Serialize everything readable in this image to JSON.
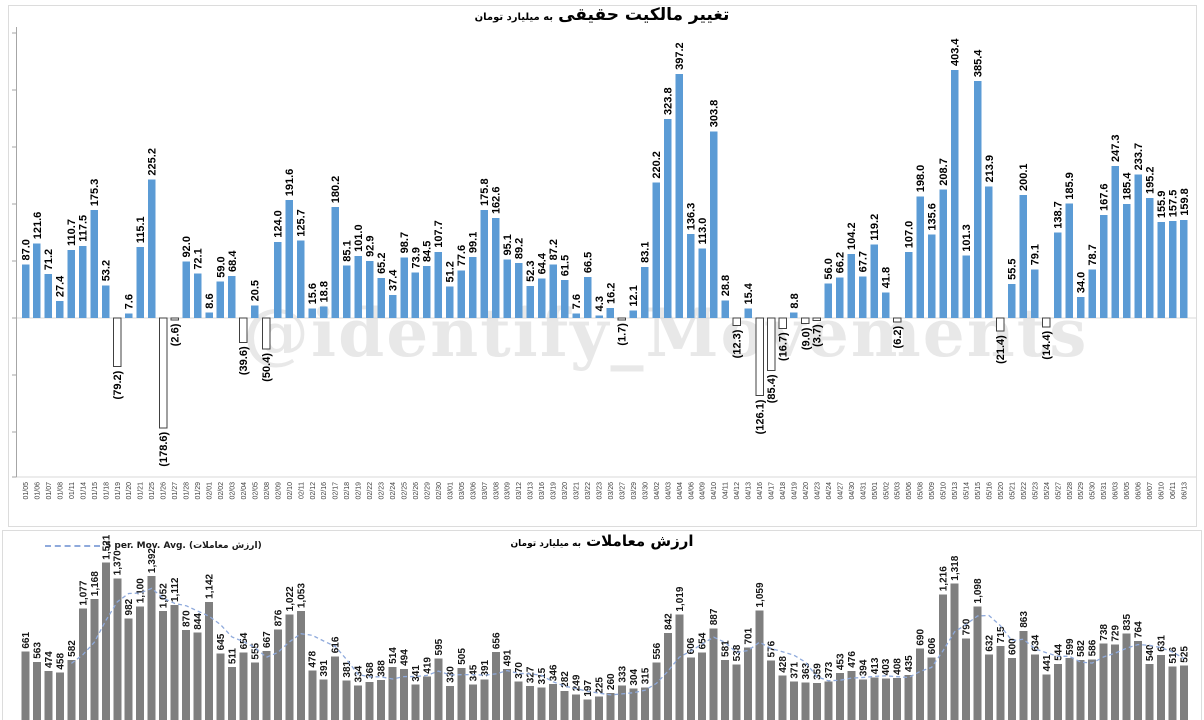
{
  "watermark": "@identify_Movements",
  "chart_data": [
    {
      "type": "bar",
      "title": "تغییر مالکیت حقیقی",
      "subtitle": "به میلیارد تومان",
      "bar_color": "#5B9BD5",
      "negative_bar_fill": "#FFFFFF",
      "negative_bar_border": "#404040",
      "label_note": "negative values shown in parentheses below axis",
      "grid": false,
      "ylim": [
        -260,
        470
      ],
      "categories": [
        "01/05",
        "01/06",
        "01/07",
        "01/08",
        "01/11",
        "01/14",
        "01/15",
        "01/18",
        "01/19",
        "01/20",
        "01/21",
        "01/25",
        "01/26",
        "01/27",
        "01/28",
        "01/29",
        "02/01",
        "02/02",
        "02/03",
        "02/04",
        "02/05",
        "02/08",
        "02/09",
        "02/10",
        "02/11",
        "02/12",
        "02/16",
        "02/17",
        "02/18",
        "02/19",
        "02/22",
        "02/23",
        "02/24",
        "02/25",
        "02/26",
        "02/29",
        "02/30",
        "03/01",
        "03/05",
        "03/06",
        "03/07",
        "03/08",
        "03/09",
        "03/12",
        "03/13",
        "03/16",
        "03/19",
        "03/20",
        "03/21",
        "03/22",
        "03/23",
        "03/26",
        "03/27",
        "03/29",
        "03/30",
        "04/02",
        "04/03",
        "04/04",
        "04/06",
        "04/09",
        "04/10",
        "04/11",
        "04/12",
        "04/13",
        "04/16",
        "04/17",
        "04/18",
        "04/19",
        "04/20",
        "04/23",
        "04/24",
        "04/27",
        "04/30",
        "04/31",
        "05/01",
        "05/02",
        "05/03",
        "05/06",
        "05/08",
        "05/09",
        "05/10",
        "05/13",
        "05/14",
        "05/15",
        "05/16",
        "05/20",
        "05/21",
        "05/22",
        "05/23",
        "05/24",
        "05/27",
        "05/28",
        "05/29",
        "05/30",
        "05/31",
        "06/03",
        "06/05",
        "06/06",
        "06/07",
        "06/10",
        "06/11",
        "06/13"
      ],
      "values": [
        87.0,
        121.6,
        71.2,
        27.4,
        110.7,
        117.5,
        175.3,
        53.2,
        -79.2,
        7.6,
        115.1,
        225.2,
        -178.6,
        -2.6,
        92.0,
        72.1,
        8.6,
        59.0,
        68.4,
        -39.6,
        20.5,
        -50.4,
        124.0,
        191.6,
        125.7,
        15.6,
        18.8,
        180.2,
        85.1,
        101.0,
        92.9,
        65.2,
        37.4,
        98.7,
        73.9,
        84.5,
        107.7,
        51.2,
        77.6,
        99.1,
        175.8,
        162.6,
        95.1,
        89.2,
        52.3,
        64.4,
        87.2,
        61.5,
        7.6,
        66.5,
        4.3,
        16.2,
        -1.7,
        12.1,
        83.1,
        220.2,
        323.8,
        397.2,
        136.3,
        113.0,
        303.8,
        28.8,
        -12.3,
        15.4,
        -126.1,
        -85.4,
        -16.7,
        8.8,
        -9.0,
        -3.7,
        56.0,
        66.2,
        104.2,
        67.7,
        119.2,
        41.8,
        -6.2,
        107.0,
        198.0,
        135.6,
        208.7,
        403.4,
        101.3,
        385.4,
        213.9,
        -21.4,
        55.5,
        200.1,
        79.1,
        -14.4,
        138.7,
        185.9,
        34.0,
        78.7,
        167.6,
        247.3,
        185.4,
        233.7,
        195.2,
        155.9,
        157.5,
        159.8
      ]
    },
    {
      "type": "bar",
      "title": "ارزش معاملات",
      "subtitle": "به میلیارد تومان",
      "bar_color": "#7F7F7F",
      "legend": {
        "label": "5 per. Mov. Avg. (ارزش معاملات)",
        "position": "top-left"
      },
      "moving_average": {
        "period": 5,
        "line_color": "#8FAADC",
        "line_style": "dashed"
      },
      "x_note": "same trading dates as top chart; x-axis labels cropped at image bottom",
      "grid": false,
      "ylim": [
        0,
        1840
      ],
      "values": [
        661,
        563,
        474,
        458,
        582,
        1077,
        1168,
        1521,
        1370,
        982,
        1100,
        1392,
        1052,
        1112,
        870,
        844,
        1142,
        645,
        511,
        654,
        555,
        667,
        876,
        1022,
        1053,
        478,
        391,
        616,
        381,
        334,
        368,
        388,
        514,
        494,
        341,
        419,
        595,
        330,
        505,
        345,
        391,
        656,
        491,
        370,
        327,
        315,
        346,
        282,
        249,
        197,
        225,
        260,
        333,
        304,
        315,
        556,
        842,
        1019,
        606,
        654,
        887,
        581,
        538,
        701,
        1059,
        576,
        428,
        371,
        363,
        359,
        373,
        453,
        476,
        394,
        413,
        403,
        408,
        435,
        690,
        606,
        1216,
        1318,
        790,
        1098,
        632,
        715,
        600,
        863,
        634,
        441,
        544,
        599,
        582,
        586,
        738,
        729,
        835,
        764,
        540,
        631,
        516,
        525
      ]
    }
  ]
}
